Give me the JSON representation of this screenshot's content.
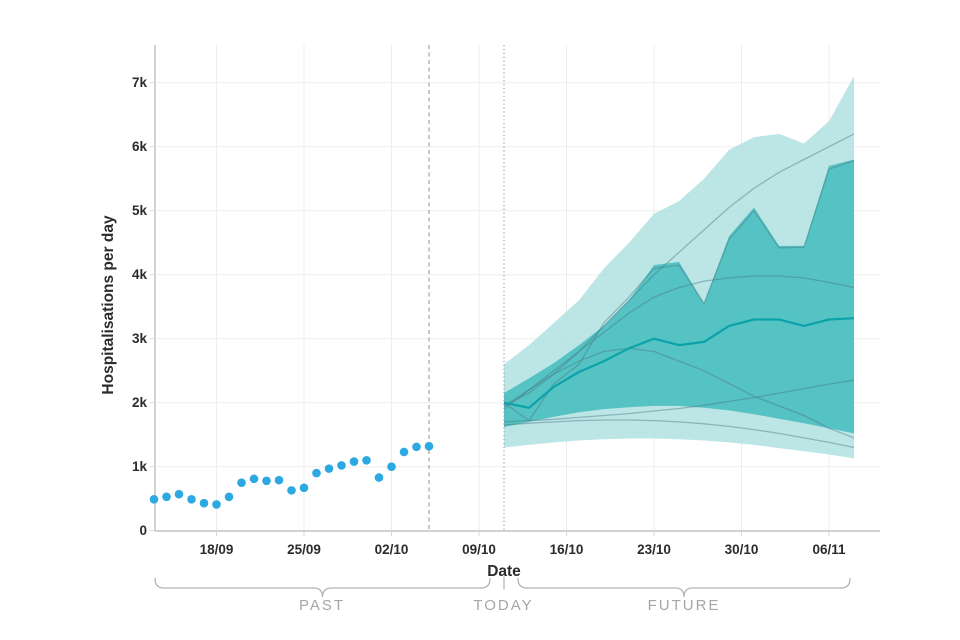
{
  "page": {
    "background": "#ffffff"
  },
  "chart_data": {
    "type": "area",
    "subtype": "observed-scatter-with-forecast-fan",
    "title": "",
    "xlabel": "Date",
    "ylabel": "Hospitalisations per day",
    "ylim": [
      0,
      7500
    ],
    "grid": true,
    "y_ticks": [
      {
        "label": "0",
        "value": 0
      },
      {
        "label": "1k",
        "value": 1000
      },
      {
        "label": "2k",
        "value": 2000
      },
      {
        "label": "3k",
        "value": 3000
      },
      {
        "label": "4k",
        "value": 4000
      },
      {
        "label": "5k",
        "value": 5000
      },
      {
        "label": "6k",
        "value": 6000
      },
      {
        "label": "7k",
        "value": 7000
      }
    ],
    "x_ticks": [
      {
        "label": "18/09",
        "day": 5
      },
      {
        "label": "25/09",
        "day": 12
      },
      {
        "label": "02/10",
        "day": 19
      },
      {
        "label": "09/10",
        "day": 26
      },
      {
        "label": "16/10",
        "day": 33
      },
      {
        "label": "23/10",
        "day": 40
      },
      {
        "label": "30/10",
        "day": 47
      },
      {
        "label": "06/11",
        "day": 54
      }
    ],
    "observed": {
      "dates": [
        "13/09",
        "14/09",
        "15/09",
        "16/09",
        "17/09",
        "18/09",
        "19/09",
        "20/09",
        "21/09",
        "22/09",
        "23/09",
        "24/09",
        "25/09",
        "26/09",
        "27/09",
        "28/09",
        "29/09",
        "30/09",
        "01/10",
        "02/10",
        "03/10",
        "04/10",
        "05/10"
      ],
      "values": [
        490,
        530,
        570,
        490,
        430,
        410,
        530,
        750,
        810,
        780,
        790,
        630,
        670,
        900,
        970,
        1020,
        1080,
        1100,
        830,
        1000,
        1230,
        1310,
        1320
      ]
    },
    "vlines": {
      "data_end": {
        "date": "05/10",
        "day": 22,
        "style": "dashed"
      },
      "today": {
        "date": "11/10",
        "day": 28,
        "style": "dotted"
      }
    },
    "forecast": {
      "start_date": "11/10",
      "start_day": 28,
      "day_offsets": [
        0,
        2,
        4,
        6,
        8,
        10,
        12,
        14,
        16,
        18,
        20,
        22,
        24,
        26,
        28
      ],
      "outer_band": {
        "upper": [
          2600,
          2900,
          3250,
          3600,
          4100,
          4500,
          4950,
          5150,
          5500,
          5950,
          6150,
          6200,
          6050,
          6400,
          7100
        ],
        "lower": [
          1300,
          1340,
          1380,
          1410,
          1430,
          1440,
          1440,
          1430,
          1410,
          1380,
          1340,
          1290,
          1240,
          1190,
          1130
        ]
      },
      "inner_band": {
        "upper": [
          2150,
          2380,
          2620,
          2900,
          3200,
          3600,
          4150,
          4200,
          3550,
          4600,
          5050,
          4450,
          4450,
          5700,
          5800
        ],
        "lower": [
          1620,
          1700,
          1780,
          1850,
          1900,
          1930,
          1950,
          1950,
          1920,
          1880,
          1820,
          1750,
          1680,
          1600,
          1520
        ]
      },
      "median": [
        2000,
        1920,
        2250,
        2480,
        2650,
        2850,
        3000,
        2900,
        2950,
        3200,
        3300,
        3300,
        3200,
        3300,
        3320
      ],
      "trajectories": [
        [
          1950,
          2150,
          2450,
          2800,
          3200,
          3600,
          4000,
          4350,
          4700,
          5050,
          5350,
          5600,
          5800,
          6000,
          6200
        ],
        [
          2000,
          1720,
          2300,
          2600,
          3250,
          3650,
          4100,
          4150,
          3550,
          4550,
          5000,
          4420,
          4430,
          5650,
          5780
        ],
        [
          1950,
          2200,
          2500,
          2800,
          3100,
          3400,
          3650,
          3800,
          3900,
          3950,
          3980,
          3980,
          3950,
          3880,
          3800
        ],
        [
          1900,
          2200,
          2450,
          2650,
          2800,
          2850,
          2800,
          2650,
          2500,
          2300,
          2100,
          1950,
          1800,
          1600,
          1450
        ],
        [
          1700,
          1720,
          1740,
          1770,
          1800,
          1830,
          1870,
          1910,
          1960,
          2020,
          2080,
          2150,
          2220,
          2290,
          2350
        ],
        [
          1650,
          1680,
          1700,
          1720,
          1730,
          1730,
          1720,
          1700,
          1670,
          1630,
          1580,
          1520,
          1450,
          1380,
          1300
        ]
      ]
    },
    "annotations": {
      "past": "PAST",
      "today": "TODAY",
      "future": "FUTURE"
    },
    "colors": {
      "observed_dot": "#2ca9e1",
      "band_outer": "#b0e1e2",
      "band_inner": "#4cbfc1",
      "median_line": "#0ba3a9",
      "trajectory_line": "#4a7a85",
      "grid": "#ededed",
      "axis": "#c4c4c4",
      "tick": "#d9d9d9",
      "vline": "#999999",
      "text": "#2b2b2b",
      "annotation_text": "#a6a6a6",
      "brace": "#b3b3b3"
    },
    "legend_position": "none"
  }
}
